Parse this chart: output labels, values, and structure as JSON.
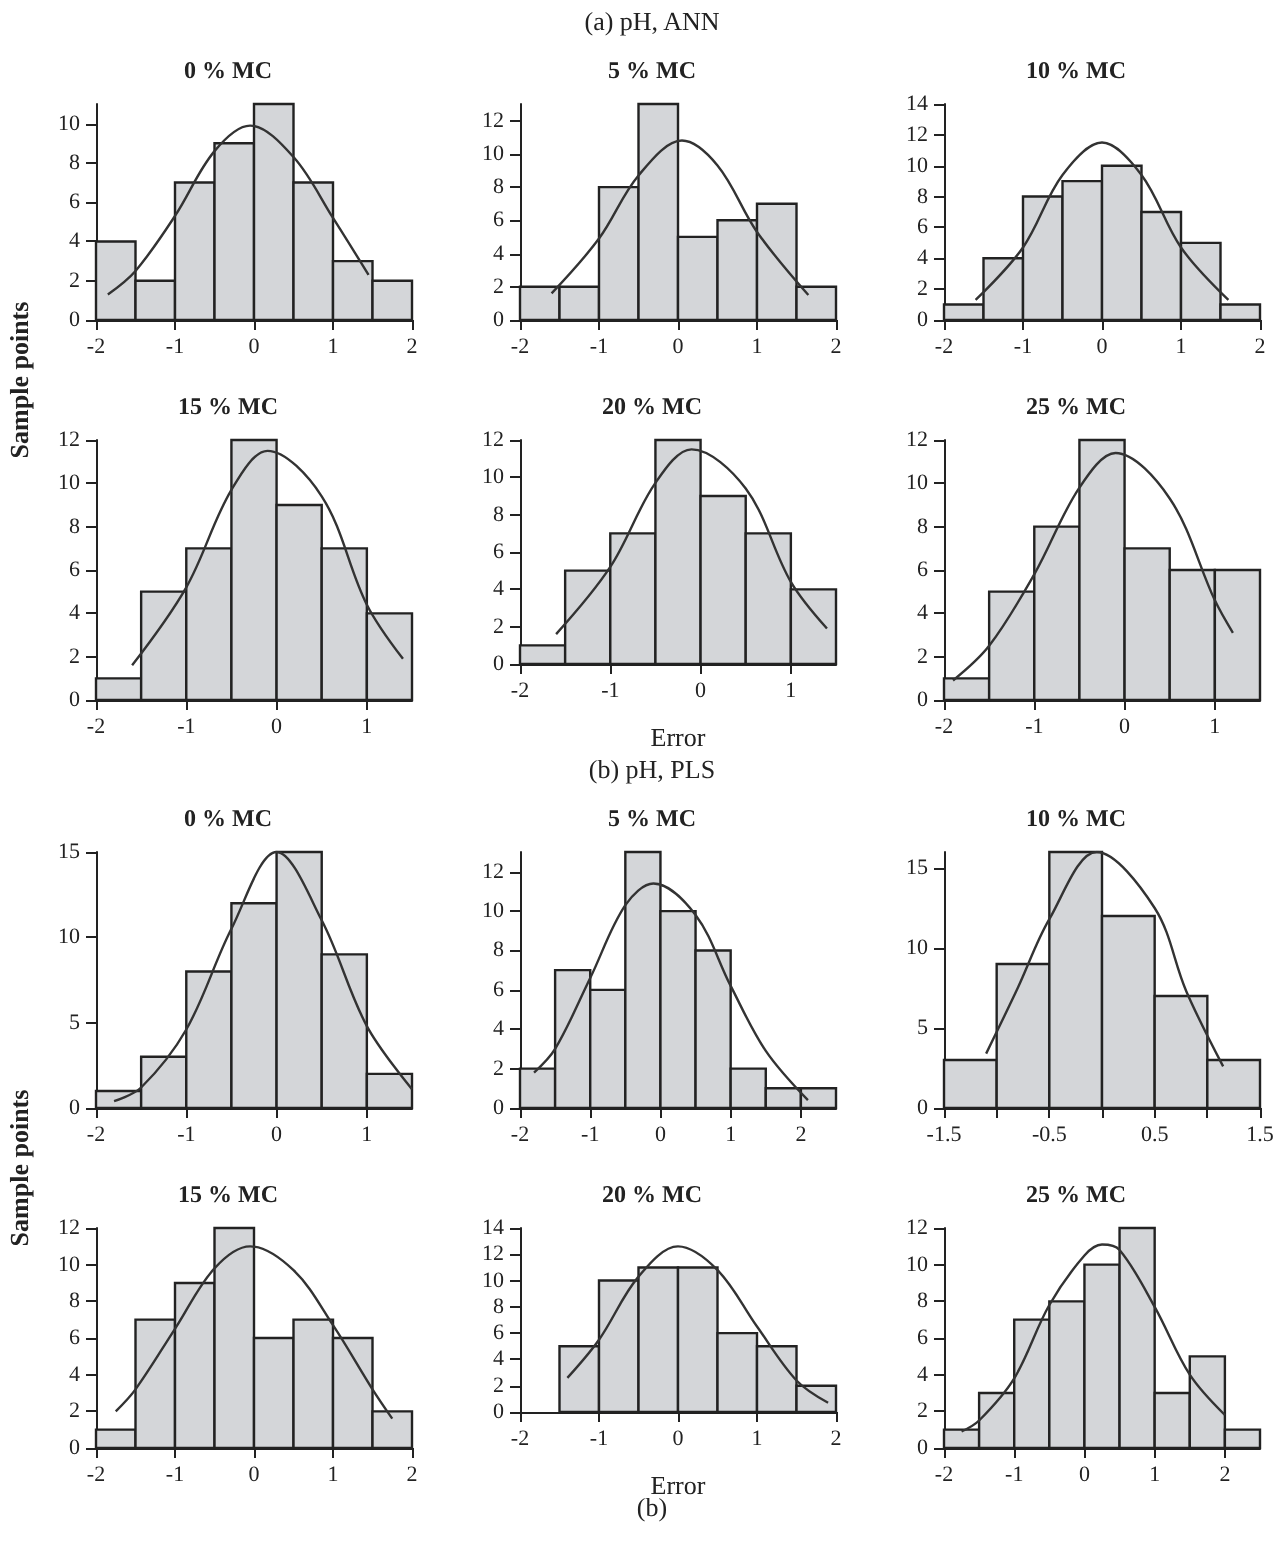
{
  "chart_data": [
    {
      "type": "histogram",
      "title": "0 % MC",
      "ylabel": "Sample points",
      "xlim": [
        -2,
        2
      ],
      "xticks": [
        -2,
        -1,
        0,
        1,
        2
      ],
      "ylim": [
        0,
        11
      ],
      "yticks": [
        0,
        2,
        4,
        6,
        8,
        10
      ],
      "grid": false,
      "marker": "none",
      "series": [
        {
          "type": "histogram",
          "bins": [
            -2,
            -1.5,
            -1,
            -0.5,
            0,
            0.5,
            1,
            1.5,
            2
          ],
          "values": [
            4,
            2,
            7,
            9,
            11,
            7,
            3,
            2
          ],
          "color": "#d4d6d9"
        },
        {
          "type": "line",
          "x": [
            -1.85,
            -1.5,
            -1,
            -0.5,
            -0.05,
            0.5,
            1,
            1.45
          ],
          "values": [
            1.3,
            2.5,
            5.3,
            8.6,
            9.9,
            8.3,
            5.2,
            2.3
          ],
          "color": "#333333"
        }
      ]
    },
    {
      "type": "histogram",
      "title": "5 % MC",
      "annotations": [
        "(a) pH, ANN"
      ],
      "xlim": [
        -2,
        2
      ],
      "xticks": [
        -2,
        -1,
        0,
        1,
        2
      ],
      "ylim": [
        0,
        13
      ],
      "yticks": [
        0,
        2,
        4,
        6,
        8,
        10,
        12
      ],
      "grid": false,
      "marker": "none",
      "series": [
        {
          "type": "histogram",
          "bins": [
            -2,
            -1.5,
            -1,
            -0.5,
            0,
            0.5,
            1,
            1.5,
            2
          ],
          "values": [
            2,
            2,
            8,
            13,
            5,
            6,
            7,
            2
          ],
          "color": "#d4d6d9"
        },
        {
          "type": "line",
          "x": [
            -1.6,
            -1,
            -0.5,
            0.05,
            0.5,
            1,
            1.65
          ],
          "values": [
            1.6,
            4.9,
            8.7,
            10.8,
            9.3,
            5.3,
            1.5
          ],
          "color": "#333333"
        }
      ]
    },
    {
      "type": "histogram",
      "title": "10 % MC",
      "xlim": [
        -2,
        2
      ],
      "xticks": [
        -2,
        -1,
        0,
        1,
        2
      ],
      "ylim": [
        0,
        14
      ],
      "yticks": [
        0,
        2,
        4,
        6,
        8,
        10,
        12,
        14
      ],
      "grid": false,
      "marker": "none",
      "series": [
        {
          "type": "histogram",
          "bins": [
            -2,
            -1.5,
            -1,
            -0.5,
            0,
            0.5,
            1,
            1.5,
            2
          ],
          "values": [
            1,
            4,
            8,
            9,
            10,
            7,
            5,
            1
          ],
          "color": "#d4d6d9"
        },
        {
          "type": "line",
          "x": [
            -1.6,
            -1,
            -0.5,
            0,
            0.5,
            1,
            1.6
          ],
          "values": [
            1.3,
            4.7,
            9.4,
            11.5,
            9.4,
            4.7,
            1.3
          ],
          "color": "#333333"
        }
      ]
    },
    {
      "type": "histogram",
      "title": "15 % MC",
      "xlim": [
        -2,
        1.5
      ],
      "xticks": [
        -2,
        -1,
        0,
        1
      ],
      "ylim": [
        0,
        12
      ],
      "yticks": [
        0,
        2,
        4,
        6,
        8,
        10,
        12
      ],
      "grid": false,
      "marker": "none",
      "series": [
        {
          "type": "histogram",
          "bins": [
            -2,
            -1.5,
            -1,
            -0.5,
            0,
            0.5,
            1,
            1.5
          ],
          "values": [
            1,
            5,
            7,
            12,
            9,
            7,
            4
          ],
          "color": "#d4d6d9"
        },
        {
          "type": "line",
          "x": [
            -1.6,
            -1,
            -0.5,
            -0.1,
            0.5,
            1,
            1.4
          ],
          "values": [
            1.6,
            5.2,
            9.7,
            11.5,
            9.4,
            4.4,
            1.9
          ],
          "color": "#333333"
        }
      ]
    },
    {
      "type": "histogram",
      "title": "20 % MC",
      "xlabel": "Error",
      "xlim": [
        -2,
        1.5
      ],
      "xticks": [
        -2,
        -1,
        0,
        1
      ],
      "ylim": [
        0,
        12
      ],
      "yticks": [
        0,
        2,
        4,
        6,
        8,
        10,
        12
      ],
      "grid": false,
      "marker": "none",
      "series": [
        {
          "type": "histogram",
          "bins": [
            -2,
            -1.5,
            -1,
            -0.5,
            0,
            0.5,
            1,
            1.5
          ],
          "values": [
            1,
            5,
            7,
            12,
            9,
            7,
            4
          ],
          "color": "#d4d6d9"
        },
        {
          "type": "line",
          "x": [
            -1.6,
            -1,
            -0.5,
            -0.1,
            0.5,
            1,
            1.4
          ],
          "values": [
            1.6,
            5.2,
            9.7,
            11.5,
            9.4,
            4.4,
            1.9
          ],
          "color": "#333333"
        }
      ]
    },
    {
      "type": "histogram",
      "title": "25 % MC",
      "xlim": [
        -2,
        1.5
      ],
      "xticks": [
        -2,
        -1,
        0,
        1
      ],
      "ylim": [
        0,
        12
      ],
      "yticks": [
        0,
        2,
        4,
        6,
        8,
        10,
        12
      ],
      "grid": false,
      "marker": "none",
      "series": [
        {
          "type": "histogram",
          "bins": [
            -2,
            -1.5,
            -1,
            -0.5,
            0,
            0.5,
            1,
            1.5
          ],
          "values": [
            1,
            5,
            8,
            12,
            7,
            6,
            6
          ],
          "color": "#d4d6d9"
        },
        {
          "type": "line",
          "x": [
            -1.9,
            -1.5,
            -1,
            -0.5,
            -0.1,
            0.5,
            1,
            1.2
          ],
          "values": [
            0.9,
            2.5,
            5.8,
            9.8,
            11.4,
            9.3,
            4.6,
            3.1
          ],
          "color": "#333333"
        }
      ]
    },
    {
      "type": "histogram",
      "title": "0 % MC",
      "ylabel": "Sample points",
      "xlim": [
        -2,
        1.5
      ],
      "xticks": [
        -2,
        -1,
        0,
        1
      ],
      "ylim": [
        0,
        15
      ],
      "yticks": [
        0,
        5,
        10,
        15
      ],
      "grid": false,
      "marker": "none",
      "series": [
        {
          "type": "histogram",
          "bins": [
            -2,
            -1.5,
            -1,
            -0.5,
            0,
            0.5,
            1,
            1.5
          ],
          "values": [
            1,
            3,
            8,
            12,
            15,
            9,
            2
          ],
          "color": "#d4d6d9"
        },
        {
          "type": "line",
          "x": [
            -1.8,
            -1.5,
            -1,
            -0.5,
            0,
            0.5,
            1,
            1.5
          ],
          "values": [
            0.4,
            1.2,
            4.6,
            10.5,
            15,
            11,
            4.8,
            1.1
          ],
          "color": "#333333"
        }
      ]
    },
    {
      "type": "histogram",
      "title": "5 % MC",
      "annotations": [
        "(b) pH, PLS"
      ],
      "xlim": [
        -2,
        2.5
      ],
      "xticks": [
        -2,
        -1,
        0,
        1,
        2
      ],
      "ylim": [
        0,
        13
      ],
      "yticks": [
        0,
        2,
        4,
        6,
        8,
        10,
        12
      ],
      "grid": false,
      "marker": "none",
      "series": [
        {
          "type": "histogram",
          "bins": [
            -2,
            -1.5,
            -1,
            -0.5,
            0,
            0.5,
            1,
            1.5,
            2,
            2.5
          ],
          "values": [
            2,
            7,
            6,
            13,
            10,
            8,
            2,
            1,
            1
          ],
          "color": "#d4d6d9"
        },
        {
          "type": "line",
          "x": [
            -1.8,
            -1.5,
            -1,
            -0.5,
            -0.1,
            0.5,
            1,
            1.5,
            2.1
          ],
          "values": [
            1.8,
            3,
            6.6,
            10.3,
            11.4,
            9.8,
            6.2,
            2.9,
            0.4
          ],
          "color": "#333333"
        }
      ]
    },
    {
      "type": "histogram",
      "title": "10 % MC",
      "xlim": [
        -1.5,
        1.5
      ],
      "xticks": [
        -1.5,
        {
          "value": -1,
          "label": null
        },
        -0.5,
        {
          "value": 0,
          "label": null
        },
        0.5,
        {
          "value": 1,
          "label": null
        },
        1.5
      ],
      "ylim": [
        0,
        16
      ],
      "yticks": [
        0,
        5,
        10,
        15
      ],
      "grid": false,
      "marker": "none",
      "series": [
        {
          "type": "histogram",
          "bins": [
            -1.5,
            -1,
            -0.5,
            0,
            0.5,
            1,
            1.5
          ],
          "values": [
            3,
            9,
            16,
            12,
            7,
            3
          ],
          "color": "#d4d6d9"
        },
        {
          "type": "line",
          "x": [
            -1.1,
            -0.8,
            -0.5,
            -0.05,
            0.5,
            0.8,
            1.15
          ],
          "values": [
            3.4,
            7.5,
            11.8,
            16,
            12.5,
            7.3,
            2.6
          ],
          "color": "#333333"
        }
      ]
    },
    {
      "type": "histogram",
      "title": "15 % MC",
      "xlim": [
        -2,
        2
      ],
      "xticks": [
        -2,
        -1,
        0,
        1,
        2
      ],
      "ylim": [
        0,
        12
      ],
      "yticks": [
        0,
        2,
        4,
        6,
        8,
        10,
        12
      ],
      "grid": false,
      "marker": "none",
      "series": [
        {
          "type": "histogram",
          "bins": [
            -2,
            -1.5,
            -1,
            -0.5,
            0,
            0.5,
            1,
            1.5,
            2
          ],
          "values": [
            1,
            7,
            9,
            12,
            6,
            7,
            6,
            2
          ],
          "color": "#d4d6d9"
        },
        {
          "type": "line",
          "x": [
            -1.75,
            -1.5,
            -1,
            -0.5,
            -0.05,
            0.5,
            1,
            1.5,
            1.75
          ],
          "values": [
            2,
            3.2,
            6.5,
            9.8,
            11,
            9.7,
            6.7,
            3.2,
            1.6
          ],
          "color": "#333333"
        }
      ]
    },
    {
      "type": "histogram",
      "title": "20 % MC",
      "xlabel": "Error",
      "annotations": [
        "(b)"
      ],
      "xlim": [
        -2,
        2
      ],
      "xticks": [
        -2,
        -1,
        0,
        1,
        2
      ],
      "ylim": [
        0,
        14
      ],
      "yticks": [
        0,
        2,
        4,
        6,
        8,
        10,
        12,
        14
      ],
      "grid": false,
      "marker": "none",
      "series": [
        {
          "type": "histogram",
          "bins": [
            -1.5,
            -1,
            -0.5,
            0,
            0.5,
            1,
            1.5,
            2
          ],
          "values": [
            5,
            10,
            11,
            11,
            6,
            5,
            2
          ],
          "color": "#d4d6d9"
        },
        {
          "type": "line",
          "x": [
            -1.4,
            -1,
            -0.5,
            0,
            0.5,
            1,
            1.5,
            1.9
          ],
          "values": [
            2.6,
            5.5,
            10.3,
            12.6,
            10.8,
            6.5,
            2.4,
            0.7
          ],
          "color": "#333333"
        }
      ]
    },
    {
      "type": "histogram",
      "title": "25 % MC",
      "xlim": [
        -2,
        2.5
      ],
      "xticks": [
        -2,
        -1,
        0,
        1,
        2
      ],
      "ylim": [
        0,
        12
      ],
      "yticks": [
        0,
        2,
        4,
        6,
        8,
        10,
        12
      ],
      "grid": false,
      "marker": "none",
      "series": [
        {
          "type": "histogram",
          "bins": [
            -2,
            -1.5,
            -1,
            -0.5,
            0,
            0.5,
            1,
            1.5,
            2,
            2.5
          ],
          "values": [
            1,
            3,
            7,
            8,
            10,
            12,
            3,
            5,
            1
          ],
          "color": "#d4d6d9"
        },
        {
          "type": "line",
          "x": [
            -1.75,
            -1.5,
            -1,
            -0.5,
            0,
            0.25,
            0.5,
            1,
            1.5,
            2
          ],
          "values": [
            0.9,
            1.5,
            3.8,
            7.8,
            10.5,
            11.1,
            10.8,
            7.7,
            4,
            1.8
          ],
          "color": "#333333"
        }
      ]
    }
  ]
}
